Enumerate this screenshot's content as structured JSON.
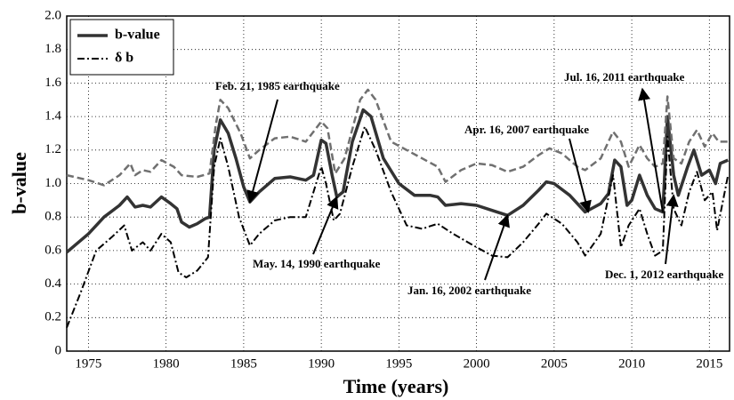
{
  "chart_data": {
    "type": "line",
    "xlabel": "Time (years)",
    "ylabel": "b-value",
    "xlim": [
      1973.6,
      2016.3
    ],
    "xticks": [
      1975,
      1980,
      1985,
      1990,
      1995,
      2000,
      2005,
      2010,
      2015
    ],
    "ylim": [
      0,
      2
    ],
    "yticks": [
      0,
      0.2,
      0.4,
      0.6,
      0.8,
      {
        "value": 1,
        "label": "1.0"
      },
      1.2,
      1.4,
      1.6,
      1.8,
      {
        "value": 2,
        "label": "2.0"
      }
    ],
    "grid": true,
    "legend": "upper-left",
    "series": [
      {
        "name": "b-value",
        "color": "#333333",
        "style": "solid",
        "x": [
          1973.6,
          1975,
          1976,
          1977,
          1977.5,
          1978,
          1978.5,
          1979,
          1979.7,
          1980.3,
          1980.7,
          1981,
          1981.5,
          1982,
          1982.5,
          1982.8,
          1983.1,
          1983.5,
          1984,
          1984.5,
          1985,
          1985.4,
          1986,
          1987,
          1988,
          1989,
          1989.5,
          1990,
          1990.3,
          1990.7,
          1991,
          1991.4,
          1992,
          1992.7,
          1993.2,
          1994,
          1995,
          1996,
          1997,
          1997.5,
          1998,
          1999,
          2000,
          2001,
          2002,
          2003,
          2004,
          2004.5,
          2005,
          2006,
          2007,
          2008,
          2008.5,
          2008.9,
          2009.3,
          2009.7,
          2010,
          2010.5,
          2011,
          2011.5,
          2012,
          2012.3,
          2012.7,
          2013,
          2013.6,
          2014,
          2014.5,
          2015,
          2015.4,
          2015.7,
          2016.2
        ],
        "values": [
          0.59,
          0.7,
          0.8,
          0.87,
          0.92,
          0.86,
          0.87,
          0.86,
          0.92,
          0.88,
          0.85,
          0.77,
          0.74,
          0.76,
          0.79,
          0.8,
          1.2,
          1.38,
          1.3,
          1.15,
          0.98,
          0.89,
          0.95,
          1.03,
          1.04,
          1.02,
          1.05,
          1.26,
          1.24,
          1.05,
          0.92,
          0.95,
          1.25,
          1.44,
          1.4,
          1.15,
          1.0,
          0.93,
          0.93,
          0.92,
          0.87,
          0.88,
          0.87,
          0.84,
          0.81,
          0.87,
          0.96,
          1.01,
          1.0,
          0.93,
          0.83,
          0.88,
          0.94,
          1.14,
          1.1,
          0.87,
          0.9,
          1.05,
          0.93,
          0.85,
          0.83,
          1.4,
          1.05,
          0.93,
          1.1,
          1.2,
          1.05,
          1.08,
          1.0,
          1.12,
          1.14
        ]
      },
      {
        "color": "#707070",
        "style": "dashed",
        "x": [
          1973.6,
          1975,
          1976,
          1977,
          1977.7,
          1978,
          1978.5,
          1979,
          1979.7,
          1980.5,
          1981,
          1982,
          1982.8,
          1983.2,
          1983.5,
          1984,
          1984.8,
          1985.4,
          1986,
          1987,
          1988,
          1989,
          1990,
          1990.4,
          1990.9,
          1991.5,
          1992.5,
          1993,
          1993.5,
          1994.5,
          1995.5,
          1996.5,
          1997.5,
          1998,
          1999,
          2000,
          2001,
          2002,
          2003,
          2004,
          2004.7,
          2005.5,
          2006.5,
          2007,
          2008,
          2008.8,
          2009.3,
          2009.8,
          2010.5,
          2011,
          2011.5,
          2012,
          2012.3,
          2012.7,
          2013.2,
          2013.7,
          2014.2,
          2014.7,
          2015.2,
          2015.6,
          2016.2
        ],
        "values": [
          1.05,
          1.02,
          0.99,
          1.05,
          1.12,
          1.05,
          1.08,
          1.07,
          1.14,
          1.1,
          1.05,
          1.04,
          1.06,
          1.35,
          1.5,
          1.45,
          1.3,
          1.15,
          1.2,
          1.27,
          1.28,
          1.25,
          1.37,
          1.33,
          1.06,
          1.15,
          1.5,
          1.56,
          1.5,
          1.25,
          1.2,
          1.15,
          1.1,
          1.01,
          1.08,
          1.12,
          1.11,
          1.07,
          1.1,
          1.17,
          1.21,
          1.18,
          1.1,
          1.08,
          1.15,
          1.31,
          1.25,
          1.1,
          1.23,
          1.15,
          1.1,
          1.12,
          1.52,
          1.15,
          1.12,
          1.25,
          1.32,
          1.22,
          1.3,
          1.25,
          1.25
        ]
      },
      {
        "name": "δ b",
        "color": "#000000",
        "style": "dashdot",
        "x": [
          1973.6,
          1974.5,
          1975.5,
          1976.5,
          1977.3,
          1977.8,
          1978.5,
          1979,
          1979.7,
          1980.3,
          1980.8,
          1981.3,
          1982,
          1982.7,
          1983.1,
          1983.5,
          1984,
          1984.7,
          1985.4,
          1986,
          1987,
          1988,
          1989,
          1990,
          1990.3,
          1990.8,
          1991.2,
          1992,
          1992.8,
          1993.5,
          1994.5,
          1995.5,
          1996.5,
          1997.5,
          1998.5,
          2000,
          2001,
          2002,
          2003,
          2004,
          2004.5,
          2005.5,
          2006.5,
          2007,
          2008,
          2008.8,
          2009.3,
          2009.8,
          2010.5,
          2011,
          2011.5,
          2012,
          2012.3,
          2012.7,
          2013.2,
          2013.7,
          2014.2,
          2014.7,
          2015.2,
          2015.5,
          2016.2
        ],
        "values": [
          0.14,
          0.35,
          0.6,
          0.68,
          0.75,
          0.6,
          0.65,
          0.6,
          0.7,
          0.65,
          0.47,
          0.44,
          0.48,
          0.56,
          1.1,
          1.27,
          1.1,
          0.8,
          0.63,
          0.7,
          0.78,
          0.8,
          0.8,
          1.1,
          1.0,
          0.78,
          0.82,
          1.1,
          1.34,
          1.2,
          0.95,
          0.75,
          0.73,
          0.76,
          0.7,
          0.62,
          0.57,
          0.56,
          0.65,
          0.76,
          0.82,
          0.76,
          0.65,
          0.57,
          0.7,
          1.05,
          0.62,
          0.75,
          0.85,
          0.7,
          0.57,
          0.6,
          1.28,
          0.85,
          0.75,
          0.95,
          1.07,
          0.9,
          0.95,
          0.72,
          1.05
        ]
      }
    ],
    "annotations": [
      {
        "text": "Feb. 21, 1985 earthquake",
        "x": 1985.4,
        "y": 0.89
      },
      {
        "text": "May. 14, 1990 earthquake",
        "x": 1991,
        "y": 0.92
      },
      {
        "text": "Jan. 16, 2002 earthquake",
        "x": 2002,
        "y": 0.81
      },
      {
        "text": "Apr. 16, 2007 earthquake",
        "x": 2007.2,
        "y": 0.83
      },
      {
        "text": "Jul. 16, 2011 earthquake",
        "x": 2012,
        "y": 0.83
      },
      {
        "text": "Dec. 1, 2012 earthquake",
        "x": 2012.7,
        "y": 0.93
      }
    ]
  }
}
